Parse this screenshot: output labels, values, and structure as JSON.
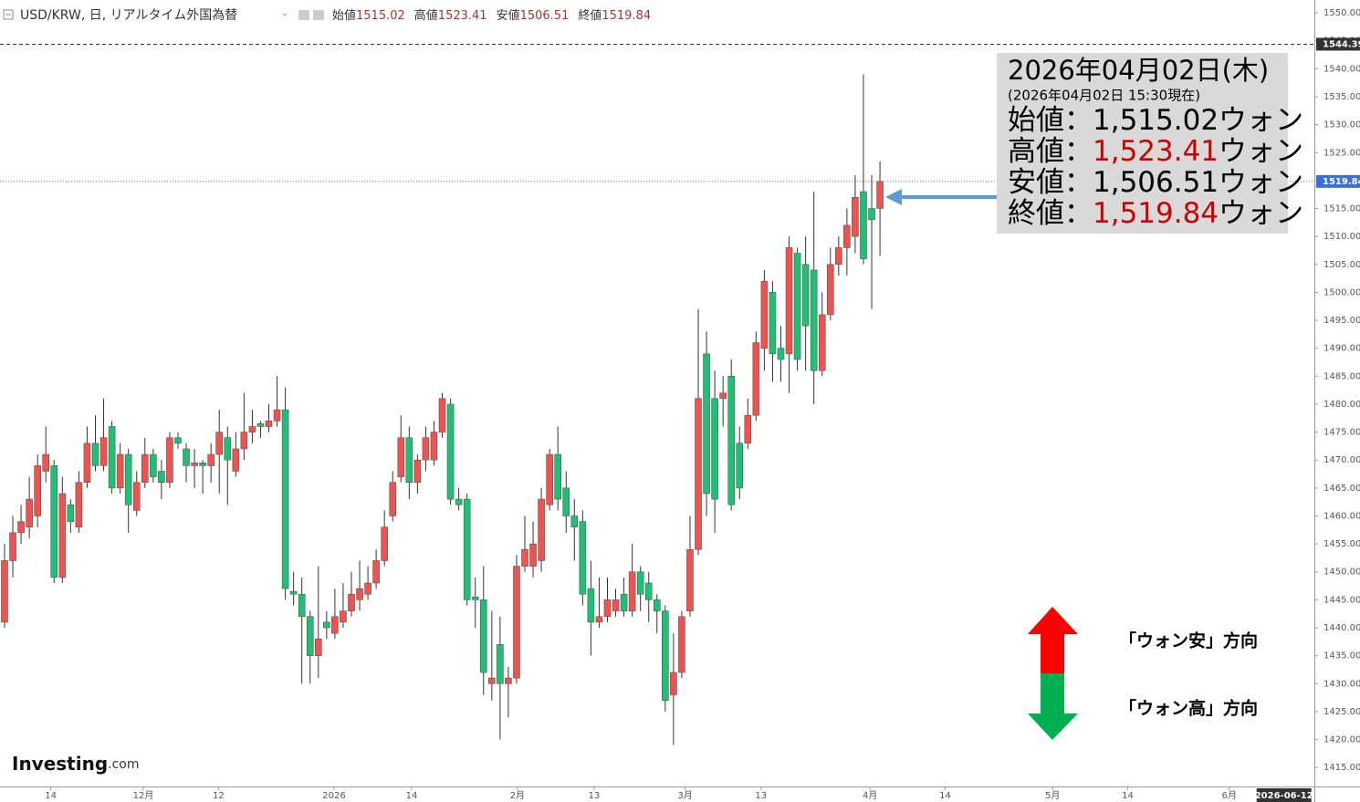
{
  "header": {
    "symbol": "USD/KRW, 日, リアルタイム外国為替",
    "open_label": "始値",
    "open": "1515.02",
    "high_label": "高値",
    "high": "1523.41",
    "low_label": "安値",
    "low": "1506.51",
    "close_label": "終値",
    "close": "1519.84"
  },
  "info_box": {
    "date": "2026年04月02日(木)",
    "asof": "(2026年04月02日 15:30現在)",
    "rows": [
      {
        "label": "始値：",
        "value": "1,515.02",
        "unit": "ウォン",
        "color": "#000000"
      },
      {
        "label": "高値：",
        "value": "1,523.41",
        "unit": "ウォン",
        "color": "#cc0000"
      },
      {
        "label": "安値：",
        "value": "1,506.51",
        "unit": "ウォン",
        "color": "#000000"
      },
      {
        "label": "終値：",
        "value": "1,519.84",
        "unit": "ウォン",
        "color": "#cc0000"
      }
    ]
  },
  "annotations": {
    "up": "「ウォン安」方向",
    "down": "「ウォン高」方向"
  },
  "logo": {
    "name": "Investing",
    "suffix": ".com"
  },
  "chart_data": {
    "type": "candlestick",
    "up_color": "#ef5350",
    "down_color": "#1fbf75",
    "ylim": [
      1411.6,
      1552.3
    ],
    "xlim": [
      -0.55,
      158.6
    ],
    "yticks": [
      {
        "value": 1415,
        "label": "1415.00"
      },
      {
        "value": 1420,
        "label": "1420.00"
      },
      {
        "value": 1425,
        "label": "1425.00"
      },
      {
        "value": 1430,
        "label": "1430.00"
      },
      {
        "value": 1435,
        "label": "1435.00"
      },
      {
        "value": 1440,
        "label": "1440.00"
      },
      {
        "value": 1445,
        "label": "1445.00"
      },
      {
        "value": 1450,
        "label": "1450.00"
      },
      {
        "value": 1455,
        "label": "1455.00"
      },
      {
        "value": 1460,
        "label": "1460.00"
      },
      {
        "value": 1465,
        "label": "1465.00"
      },
      {
        "value": 1470,
        "label": "1470.00"
      },
      {
        "value": 1475,
        "label": "1475.00"
      },
      {
        "value": 1480,
        "label": "1480.00"
      },
      {
        "value": 1485,
        "label": "1485.00"
      },
      {
        "value": 1490,
        "label": "1490.00"
      },
      {
        "value": 1495,
        "label": "1495.00"
      },
      {
        "value": 1500,
        "label": "1500.00"
      },
      {
        "value": 1505,
        "label": "1505.00"
      },
      {
        "value": 1510,
        "label": "1510.00"
      },
      {
        "value": 1515,
        "label": "1515.00"
      },
      {
        "value": 1520,
        "label": "1520.00"
      },
      {
        "value": 1525,
        "label": "1525.00"
      },
      {
        "value": 1530,
        "label": "1530.00"
      },
      {
        "value": 1535,
        "label": "1535.00"
      },
      {
        "value": 1540,
        "label": "1540.00"
      },
      {
        "value": 1545,
        "label": "1545.00"
      },
      {
        "value": 1550,
        "label": "1550.00"
      }
    ],
    "xticks": [
      {
        "value": 5.6,
        "label": "14"
      },
      {
        "value": 16.8,
        "label": "12月"
      },
      {
        "value": 25.9,
        "label": "12"
      },
      {
        "value": 39.9,
        "label": "2026"
      },
      {
        "value": 49.3,
        "label": "14"
      },
      {
        "value": 62.1,
        "label": "2月"
      },
      {
        "value": 71.4,
        "label": "13"
      },
      {
        "value": 82.4,
        "label": "3月"
      },
      {
        "value": 91.6,
        "label": "13"
      },
      {
        "value": 104.8,
        "label": "4月"
      },
      {
        "value": 113.9,
        "label": "14"
      },
      {
        "value": 126.9,
        "label": "5月"
      },
      {
        "value": 136,
        "label": "14"
      },
      {
        "value": 148.3,
        "label": "6月"
      }
    ],
    "x_marker": {
      "value": 154.7,
      "label": "2026-06-12"
    },
    "price_lines": [
      {
        "value": 1544.39,
        "label": "1544.39",
        "color": "#333333",
        "style": "dashed"
      },
      {
        "value": 1519.84,
        "label": "1519.84",
        "color": "#3d6fd8",
        "style": "dotted"
      }
    ],
    "candles": [
      {
        "open": 1441,
        "high": 1455,
        "low": 1440,
        "close": 1452
      },
      {
        "open": 1452,
        "high": 1460,
        "low": 1449,
        "close": 1457
      },
      {
        "open": 1457,
        "high": 1462,
        "low": 1455,
        "close": 1459
      },
      {
        "open": 1458,
        "high": 1467,
        "low": 1456,
        "close": 1463
      },
      {
        "open": 1460,
        "high": 1471,
        "low": 1458,
        "close": 1469
      },
      {
        "open": 1468,
        "high": 1476,
        "low": 1466,
        "close": 1471
      },
      {
        "open": 1469,
        "high": 1470,
        "low": 1448,
        "close": 1449
      },
      {
        "open": 1449,
        "high": 1467,
        "low": 1448,
        "close": 1464
      },
      {
        "open": 1462,
        "high": 1463,
        "low": 1457,
        "close": 1459
      },
      {
        "open": 1458,
        "high": 1468,
        "low": 1457,
        "close": 1466
      },
      {
        "open": 1466,
        "high": 1476,
        "low": 1465,
        "close": 1473
      },
      {
        "open": 1473,
        "high": 1478,
        "low": 1468,
        "close": 1469
      },
      {
        "open": 1469,
        "high": 1481,
        "low": 1468,
        "close": 1474
      },
      {
        "open": 1476,
        "high": 1477,
        "low": 1464,
        "close": 1465
      },
      {
        "open": 1465,
        "high": 1473,
        "low": 1464,
        "close": 1471
      },
      {
        "open": 1471,
        "high": 1472,
        "low": 1457,
        "close": 1462
      },
      {
        "open": 1461,
        "high": 1468,
        "low": 1460,
        "close": 1466
      },
      {
        "open": 1466,
        "high": 1474,
        "low": 1465,
        "close": 1471
      },
      {
        "open": 1471,
        "high": 1472,
        "low": 1466,
        "close": 1467
      },
      {
        "open": 1468,
        "high": 1470,
        "low": 1463,
        "close": 1466
      },
      {
        "open": 1466,
        "high": 1475,
        "low": 1465,
        "close": 1474
      },
      {
        "open": 1474,
        "high": 1475,
        "low": 1472,
        "close": 1473
      },
      {
        "open": 1472,
        "high": 1473,
        "low": 1466,
        "close": 1469
      },
      {
        "open": 1469,
        "high": 1472,
        "low": 1465,
        "close": 1469.5
      },
      {
        "open": 1469.5,
        "high": 1470,
        "low": 1464,
        "close": 1469
      },
      {
        "open": 1469,
        "high": 1473,
        "low": 1466,
        "close": 1471
      },
      {
        "open": 1471,
        "high": 1479,
        "low": 1464,
        "close": 1475
      },
      {
        "open": 1474,
        "high": 1476,
        "low": 1462,
        "close": 1470
      },
      {
        "open": 1468,
        "high": 1475,
        "low": 1467,
        "close": 1472
      },
      {
        "open": 1472,
        "high": 1482,
        "low": 1470,
        "close": 1475
      },
      {
        "open": 1475,
        "high": 1479,
        "low": 1473,
        "close": 1476
      },
      {
        "open": 1476.5,
        "high": 1477,
        "low": 1474,
        "close": 1476
      },
      {
        "open": 1476,
        "high": 1480,
        "low": 1475,
        "close": 1477
      },
      {
        "open": 1477,
        "high": 1485,
        "low": 1476,
        "close": 1479
      },
      {
        "open": 1479,
        "high": 1483,
        "low": 1445,
        "close": 1447
      },
      {
        "open": 1446.5,
        "high": 1450,
        "low": 1444,
        "close": 1446
      },
      {
        "open": 1446,
        "high": 1449,
        "low": 1430,
        "close": 1442
      },
      {
        "open": 1442,
        "high": 1443,
        "low": 1430,
        "close": 1435
      },
      {
        "open": 1435,
        "high": 1451,
        "low": 1431,
        "close": 1438
      },
      {
        "open": 1441,
        "high": 1443,
        "low": 1438,
        "close": 1440
      },
      {
        "open": 1439,
        "high": 1447,
        "low": 1438,
        "close": 1442
      },
      {
        "open": 1441,
        "high": 1448,
        "low": 1440,
        "close": 1443
      },
      {
        "open": 1443,
        "high": 1450,
        "low": 1442,
        "close": 1446
      },
      {
        "open": 1445,
        "high": 1452,
        "low": 1443,
        "close": 1447
      },
      {
        "open": 1446,
        "high": 1451,
        "low": 1445,
        "close": 1448
      },
      {
        "open": 1448,
        "high": 1454,
        "low": 1447,
        "close": 1452
      },
      {
        "open": 1452,
        "high": 1461,
        "low": 1451,
        "close": 1458
      },
      {
        "open": 1460,
        "high": 1468,
        "low": 1459,
        "close": 1466
      },
      {
        "open": 1467,
        "high": 1478,
        "low": 1466,
        "close": 1474
      },
      {
        "open": 1474,
        "high": 1476,
        "low": 1463,
        "close": 1466
      },
      {
        "open": 1466,
        "high": 1471,
        "low": 1464,
        "close": 1470
      },
      {
        "open": 1470,
        "high": 1476,
        "low": 1468,
        "close": 1474
      },
      {
        "open": 1470,
        "high": 1477,
        "low": 1469,
        "close": 1475
      },
      {
        "open": 1475,
        "high": 1482,
        "low": 1474,
        "close": 1481
      },
      {
        "open": 1480,
        "high": 1481,
        "low": 1462,
        "close": 1463
      },
      {
        "open": 1463,
        "high": 1465,
        "low": 1461,
        "close": 1462
      },
      {
        "open": 1463,
        "high": 1464,
        "low": 1444,
        "close": 1445
      },
      {
        "open": 1445.5,
        "high": 1449,
        "low": 1440,
        "close": 1445
      },
      {
        "open": 1445,
        "high": 1451,
        "low": 1428,
        "close": 1432
      },
      {
        "open": 1430,
        "high": 1443,
        "low": 1427,
        "close": 1431
      },
      {
        "open": 1437,
        "high": 1442,
        "low": 1420,
        "close": 1430
      },
      {
        "open": 1430,
        "high": 1433,
        "low": 1424,
        "close": 1431
      },
      {
        "open": 1431,
        "high": 1453,
        "low": 1430,
        "close": 1451
      },
      {
        "open": 1451,
        "high": 1460,
        "low": 1450,
        "close": 1454
      },
      {
        "open": 1451,
        "high": 1459,
        "low": 1449,
        "close": 1455
      },
      {
        "open": 1452,
        "high": 1465,
        "low": 1450,
        "close": 1463
      },
      {
        "open": 1462,
        "high": 1472,
        "low": 1461,
        "close": 1471
      },
      {
        "open": 1471,
        "high": 1476,
        "low": 1461,
        "close": 1463
      },
      {
        "open": 1465,
        "high": 1468,
        "low": 1457,
        "close": 1460
      },
      {
        "open": 1460,
        "high": 1463,
        "low": 1452,
        "close": 1458
      },
      {
        "open": 1459,
        "high": 1461,
        "low": 1444,
        "close": 1446
      },
      {
        "open": 1447,
        "high": 1452,
        "low": 1435,
        "close": 1441
      },
      {
        "open": 1441,
        "high": 1449,
        "low": 1440,
        "close": 1442
      },
      {
        "open": 1442,
        "high": 1449,
        "low": 1441,
        "close": 1445
      },
      {
        "open": 1443,
        "high": 1447,
        "low": 1442,
        "close": 1445
      },
      {
        "open": 1446,
        "high": 1449,
        "low": 1442,
        "close": 1443
      },
      {
        "open": 1443,
        "high": 1455,
        "low": 1442,
        "close": 1450
      },
      {
        "open": 1450,
        "high": 1451,
        "low": 1443,
        "close": 1446
      },
      {
        "open": 1448,
        "high": 1450,
        "low": 1441,
        "close": 1445
      },
      {
        "open": 1445,
        "high": 1446,
        "low": 1439,
        "close": 1443
      },
      {
        "open": 1443,
        "high": 1444,
        "low": 1425,
        "close": 1427
      },
      {
        "open": 1428,
        "high": 1439,
        "low": 1419,
        "close": 1432
      },
      {
        "open": 1432,
        "high": 1443,
        "low": 1431,
        "close": 1442
      },
      {
        "open": 1443,
        "high": 1460,
        "low": 1442,
        "close": 1454
      },
      {
        "open": 1454,
        "high": 1497,
        "low": 1453,
        "close": 1481
      },
      {
        "open": 1489,
        "high": 1493,
        "low": 1460,
        "close": 1464
      },
      {
        "open": 1481,
        "high": 1486,
        "low": 1457,
        "close": 1463
      },
      {
        "open": 1481,
        "high": 1485,
        "low": 1476,
        "close": 1482
      },
      {
        "open": 1485,
        "high": 1488,
        "low": 1461,
        "close": 1462
      },
      {
        "open": 1473,
        "high": 1476,
        "low": 1463,
        "close": 1465
      },
      {
        "open": 1473,
        "high": 1481,
        "low": 1472,
        "close": 1478
      },
      {
        "open": 1478,
        "high": 1493,
        "low": 1477,
        "close": 1491
      },
      {
        "open": 1490,
        "high": 1504,
        "low": 1486,
        "close": 1502
      },
      {
        "open": 1500,
        "high": 1502,
        "low": 1484,
        "close": 1489
      },
      {
        "open": 1490,
        "high": 1494,
        "low": 1484,
        "close": 1488
      },
      {
        "open": 1489,
        "high": 1510,
        "low": 1482,
        "close": 1508
      },
      {
        "open": 1507,
        "high": 1508,
        "low": 1486,
        "close": 1488
      },
      {
        "open": 1505,
        "high": 1510,
        "low": 1486,
        "close": 1494
      },
      {
        "open": 1504,
        "high": 1518,
        "low": 1480,
        "close": 1486
      },
      {
        "open": 1486,
        "high": 1500,
        "low": 1485,
        "close": 1496
      },
      {
        "open": 1496,
        "high": 1508,
        "low": 1495,
        "close": 1505
      },
      {
        "open": 1505,
        "high": 1510,
        "low": 1503,
        "close": 1508
      },
      {
        "open": 1508,
        "high": 1515,
        "low": 1503,
        "close": 1512
      },
      {
        "open": 1510,
        "high": 1521,
        "low": 1507,
        "close": 1517
      },
      {
        "open": 1518,
        "high": 1539,
        "low": 1505,
        "close": 1506
      },
      {
        "open": 1515,
        "high": 1521,
        "low": 1497,
        "close": 1513
      },
      {
        "open": 1515.02,
        "high": 1523.41,
        "low": 1506.51,
        "close": 1519.84
      }
    ]
  }
}
